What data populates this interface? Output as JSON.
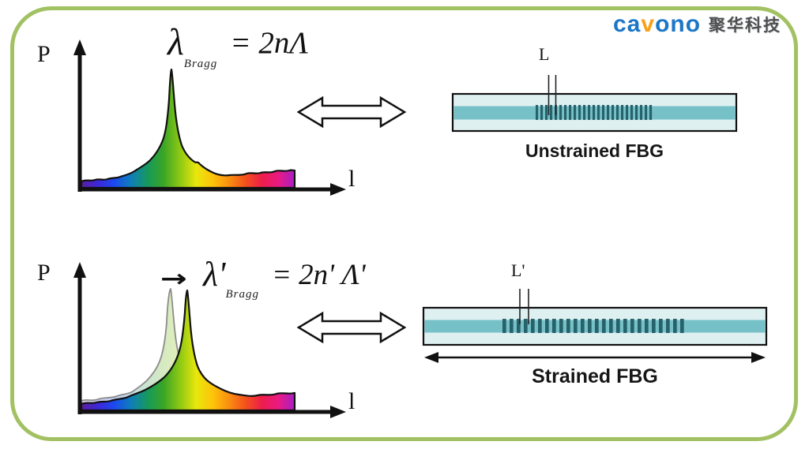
{
  "slide": {
    "background": "#ffffff",
    "border_color": "#a2c162"
  },
  "logo": {
    "brand_prefix": "ca",
    "brand_accent_letter": "v",
    "brand_suffix": "ono",
    "brand_color": "#1c77c6",
    "accent_color": "#f7a21b",
    "company_name_cn": "聚华科技",
    "company_color": "#4d4e50"
  },
  "unstrained": {
    "axis_y_label": "P",
    "axis_x_label": "l",
    "equation": {
      "lhs": "λ",
      "subscript": "Bragg",
      "rhs": "= 2nΛ"
    },
    "fiber_length_label": "L",
    "caption": "Unstrained FBG"
  },
  "strained": {
    "axis_y_label": "P",
    "axis_x_label": "l",
    "shift_arrow": "→",
    "equation": {
      "lhs": "λ'",
      "subscript": "Bragg",
      "rhs": "= 2n' Λ'"
    },
    "fiber_length_label": "L'",
    "caption": "Strained FBG"
  },
  "colors": {
    "fiber_cladding": "#dff0f1",
    "fiber_core": "#76c0c7",
    "fiber_grating": "#27626b",
    "spectrum_outline": "#111111",
    "ghost_outline": "#8c8c8c",
    "spectrum_gradient": [
      "#5a1ea0",
      "#3d28d8",
      "#1b49f0",
      "#0f7dbb",
      "#16985f",
      "#3aa526",
      "#8cc813",
      "#e8e70d",
      "#fdc40a",
      "#fa8e10",
      "#f3511c",
      "#ee1d4b",
      "#e91a83",
      "#a81ec6"
    ],
    "spectrum_gradient_pale": [
      "#d6cfe6",
      "#c9cbee",
      "#c2cdf2",
      "#c4dde4",
      "#cbe4cf",
      "#d5e9c2",
      "#e2efb9",
      "#f4f2c2",
      "#f7e6bd",
      "#f6d9be",
      "#f3c9c2",
      "#f0c3cf",
      "#eec2e0",
      "#dec6e6"
    ]
  }
}
